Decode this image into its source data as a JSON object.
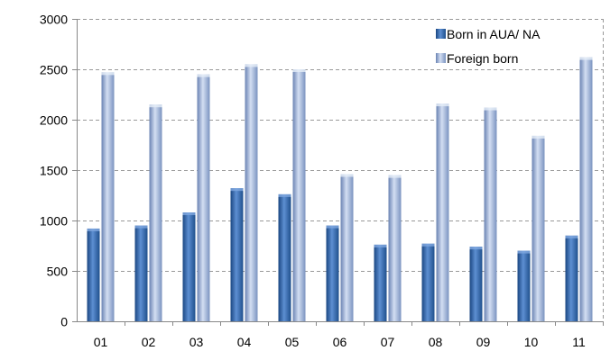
{
  "chart_data": {
    "type": "bar",
    "categories": [
      "01",
      "02",
      "03",
      "04",
      "05",
      "06",
      "07",
      "08",
      "09",
      "10",
      "11"
    ],
    "series": [
      {
        "name": "Born in AUA/ NA",
        "values": [
          920,
          950,
          1080,
          1320,
          1260,
          950,
          760,
          770,
          740,
          700,
          850
        ]
      },
      {
        "name": "Foreign born",
        "values": [
          2470,
          2150,
          2450,
          2550,
          2500,
          1460,
          1450,
          2160,
          2120,
          1840,
          2620
        ]
      }
    ],
    "ylim": [
      0,
      3000
    ],
    "yticks": [
      0,
      500,
      1000,
      1500,
      2000,
      2500,
      3000
    ],
    "grid": true,
    "legend_position": "top-right",
    "colors": {
      "series1_dark": "#1f4f8c",
      "series1_light": "#6f9fdc",
      "series2_dark": "#7189b8",
      "series2_light": "#cfdcf1",
      "grid": "#999999",
      "axis": "#888888"
    }
  }
}
